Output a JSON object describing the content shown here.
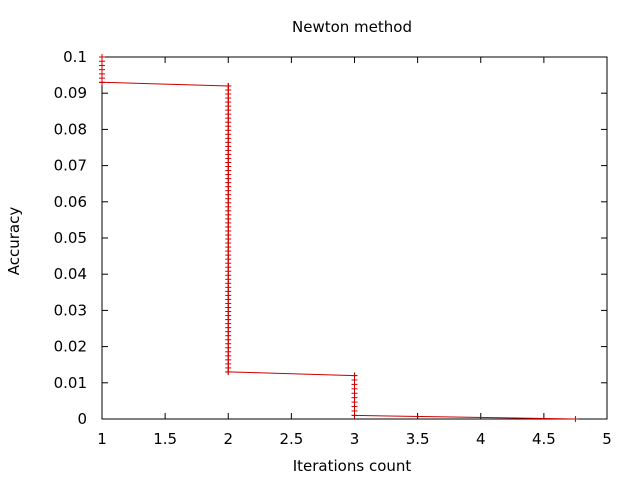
{
  "chart_data": {
    "type": "line",
    "title": "Newton method",
    "xlabel": "Iterations count",
    "ylabel": "Accuracy",
    "xlim": [
      1,
      5
    ],
    "ylim": [
      0,
      0.1
    ],
    "x_ticks": [
      "1",
      "1.5",
      "2",
      "2.5",
      "3",
      "3.5",
      "4",
      "4.5",
      "5"
    ],
    "y_ticks": [
      "0",
      "0.01",
      "0.02",
      "0.03",
      "0.04",
      "0.05",
      "0.06",
      "0.07",
      "0.08",
      "0.09",
      "0.1"
    ],
    "grid": false,
    "legend": "none",
    "colors": {
      "series": "#cc0000",
      "axes": "#000000"
    },
    "marker_style": "plus",
    "series": [
      {
        "points": [
          [
            1,
            0.1
          ],
          [
            1,
            0.093
          ],
          [
            2,
            0.092
          ],
          [
            2,
            0.013
          ],
          [
            3,
            0.012
          ],
          [
            3,
            0.001
          ],
          [
            4.75,
            0.0
          ]
        ]
      }
    ]
  }
}
